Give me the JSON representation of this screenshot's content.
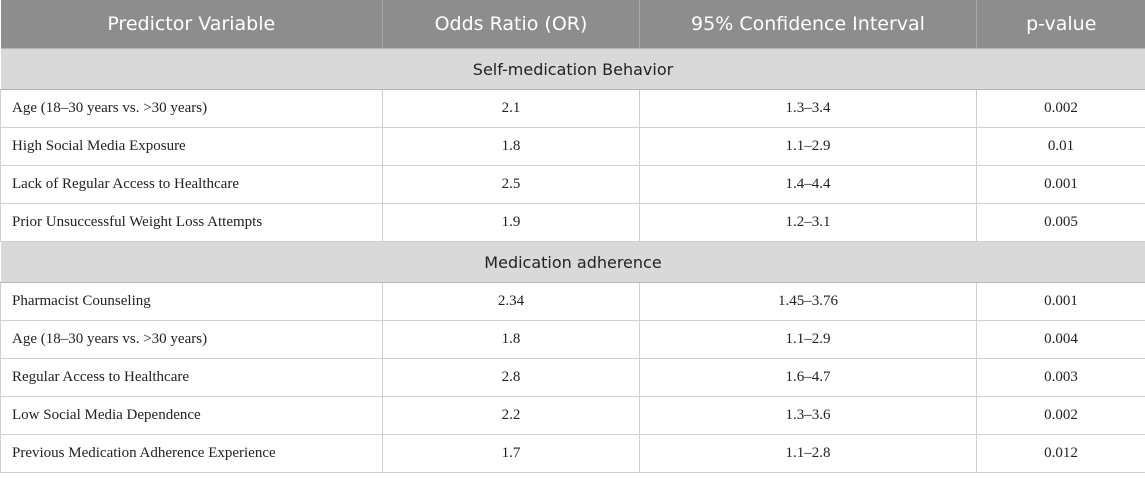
{
  "headers": [
    "Predictor Variable",
    "Odds Ratio (OR)",
    "95% Confidence Interval",
    "p-value"
  ],
  "sections": [
    {
      "title": "Self-medication Behavior",
      "rows": [
        [
          "Age (18–30 years vs. >30 years)",
          "2.1",
          "1.3–3.4",
          "0.002"
        ],
        [
          "High Social Media Exposure",
          "1.8",
          "1.1–2.9",
          "0.01"
        ],
        [
          "Lack of Regular Access to Healthcare",
          "2.5",
          "1.4–4.4",
          "0.001"
        ],
        [
          "Prior Unsuccessful Weight Loss Attempts",
          "1.9",
          "1.2–3.1",
          "0.005"
        ]
      ]
    },
    {
      "title": "Medication adherence",
      "rows": [
        [
          "Pharmacist Counseling",
          "2.34",
          "1.45–3.76",
          "0.001"
        ],
        [
          "Age (18–30 years vs. >30 years)",
          "1.8",
          "1.1–2.9",
          "0.004"
        ],
        [
          "Regular Access to Healthcare",
          "2.8",
          "1.6–4.7",
          "0.003"
        ],
        [
          "Low Social Media Dependence",
          "2.2",
          "1.3–3.6",
          "0.002"
        ],
        [
          "Previous Medication Adherence Experience",
          "1.7",
          "1.1–2.8",
          "0.012"
        ]
      ]
    }
  ]
}
